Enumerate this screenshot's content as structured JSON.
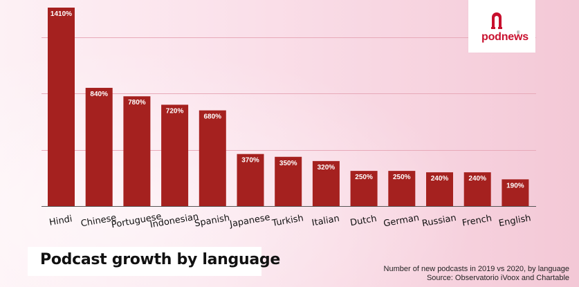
{
  "header": {
    "logo_text": "podnews",
    "logo_registered": "®"
  },
  "footer": {
    "title": "Podcast growth by language",
    "note_line1": "Number of new podcasts in 2019 vs 2020, by language",
    "note_line2": "Source: Observatorio iVoox and Chartable"
  },
  "colors": {
    "bar": "#a5211f",
    "label_text": "#ffffff",
    "gridline": "#e7a9b8",
    "brand": "#c8102e"
  },
  "chart_data": {
    "type": "bar",
    "title": "Podcast growth by language",
    "categories": [
      "Hindi",
      "Chinese",
      "Portuguese",
      "Indonesian",
      "Spanish",
      "Japanese",
      "Turkish",
      "Italian",
      "Dutch",
      "German",
      "Russian",
      "French",
      "English"
    ],
    "values": [
      1410,
      840,
      780,
      720,
      680,
      370,
      350,
      320,
      250,
      250,
      240,
      240,
      190
    ],
    "value_labels": [
      "1410%",
      "840%",
      "780%",
      "720%",
      "680%",
      "370%",
      "350%",
      "320%",
      "250%",
      "250%",
      "240%",
      "240%",
      "190%"
    ],
    "unit": "%",
    "ylim": [
      0,
      1410
    ],
    "gridlines": [
      400,
      800,
      1200
    ],
    "grid": true,
    "legend": "none",
    "xlabel": "",
    "ylabel": ""
  }
}
